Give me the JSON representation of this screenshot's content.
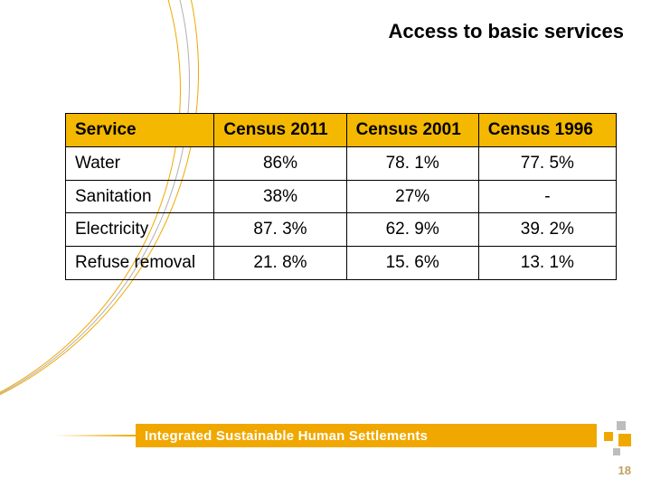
{
  "title": "Access to basic services",
  "table": {
    "columns": [
      "Service",
      "Census 2011",
      "Census 2001",
      "Census 1996"
    ],
    "rows": [
      {
        "label": "Water",
        "vals": [
          "86%",
          "78. 1%",
          "77. 5%"
        ]
      },
      {
        "label": "Sanitation",
        "vals": [
          "38%",
          "27%",
          "-"
        ]
      },
      {
        "label": "Electricity",
        "vals": [
          "87. 3%",
          "62. 9%",
          "39. 2%"
        ]
      },
      {
        "label": "Refuse removal",
        "vals": [
          "21. 8%",
          "15. 6%",
          "13. 1%"
        ]
      }
    ],
    "header_bg": "#f4b800",
    "border_color": "#000000",
    "font_size_pt": 14
  },
  "footer": {
    "text": "Integrated Sustainable Human Settlements",
    "band_color": "#f0a800",
    "text_color": "#ffffff"
  },
  "decoration": {
    "curve_colors": [
      "#f0a800",
      "#b0b0b0",
      "#f0a800"
    ],
    "square_colors": {
      "primary": "#f0a800",
      "secondary": "#bdbdbd"
    }
  },
  "page_number": "18"
}
